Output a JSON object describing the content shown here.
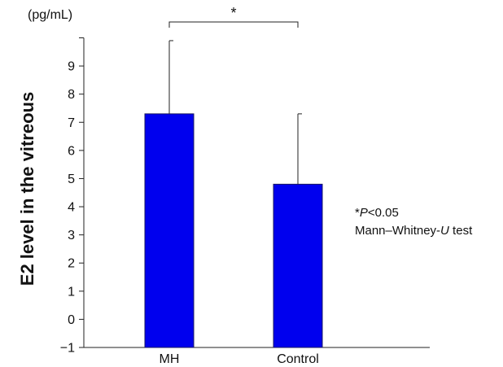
{
  "chart_data": {
    "type": "bar",
    "categories": [
      "MH",
      "Control"
    ],
    "values": [
      7.3,
      4.8
    ],
    "error_bars": [
      2.6,
      2.5
    ],
    "ylim": [
      -1,
      10
    ],
    "yticks": [
      -1,
      0,
      1,
      2,
      3,
      4,
      5,
      6,
      7,
      8,
      9
    ],
    "ytick_labels": [
      "−1",
      "0",
      "1",
      "2",
      "3",
      "4",
      "5",
      "6",
      "7",
      "8",
      "9"
    ],
    "ylabel": "E2 level in the vitreous",
    "yunit": "(pg/mL)",
    "bar_color": "#0000ee",
    "significance": {
      "between": [
        "MH",
        "Control"
      ],
      "marker": "*"
    },
    "annotation": {
      "line1_prefix": "*",
      "line1_italic": "P",
      "line1_suffix": "<0.05",
      "line2_prefix": "Mann–Whitney-",
      "line2_italic": "U",
      "line2_suffix": " test"
    }
  }
}
